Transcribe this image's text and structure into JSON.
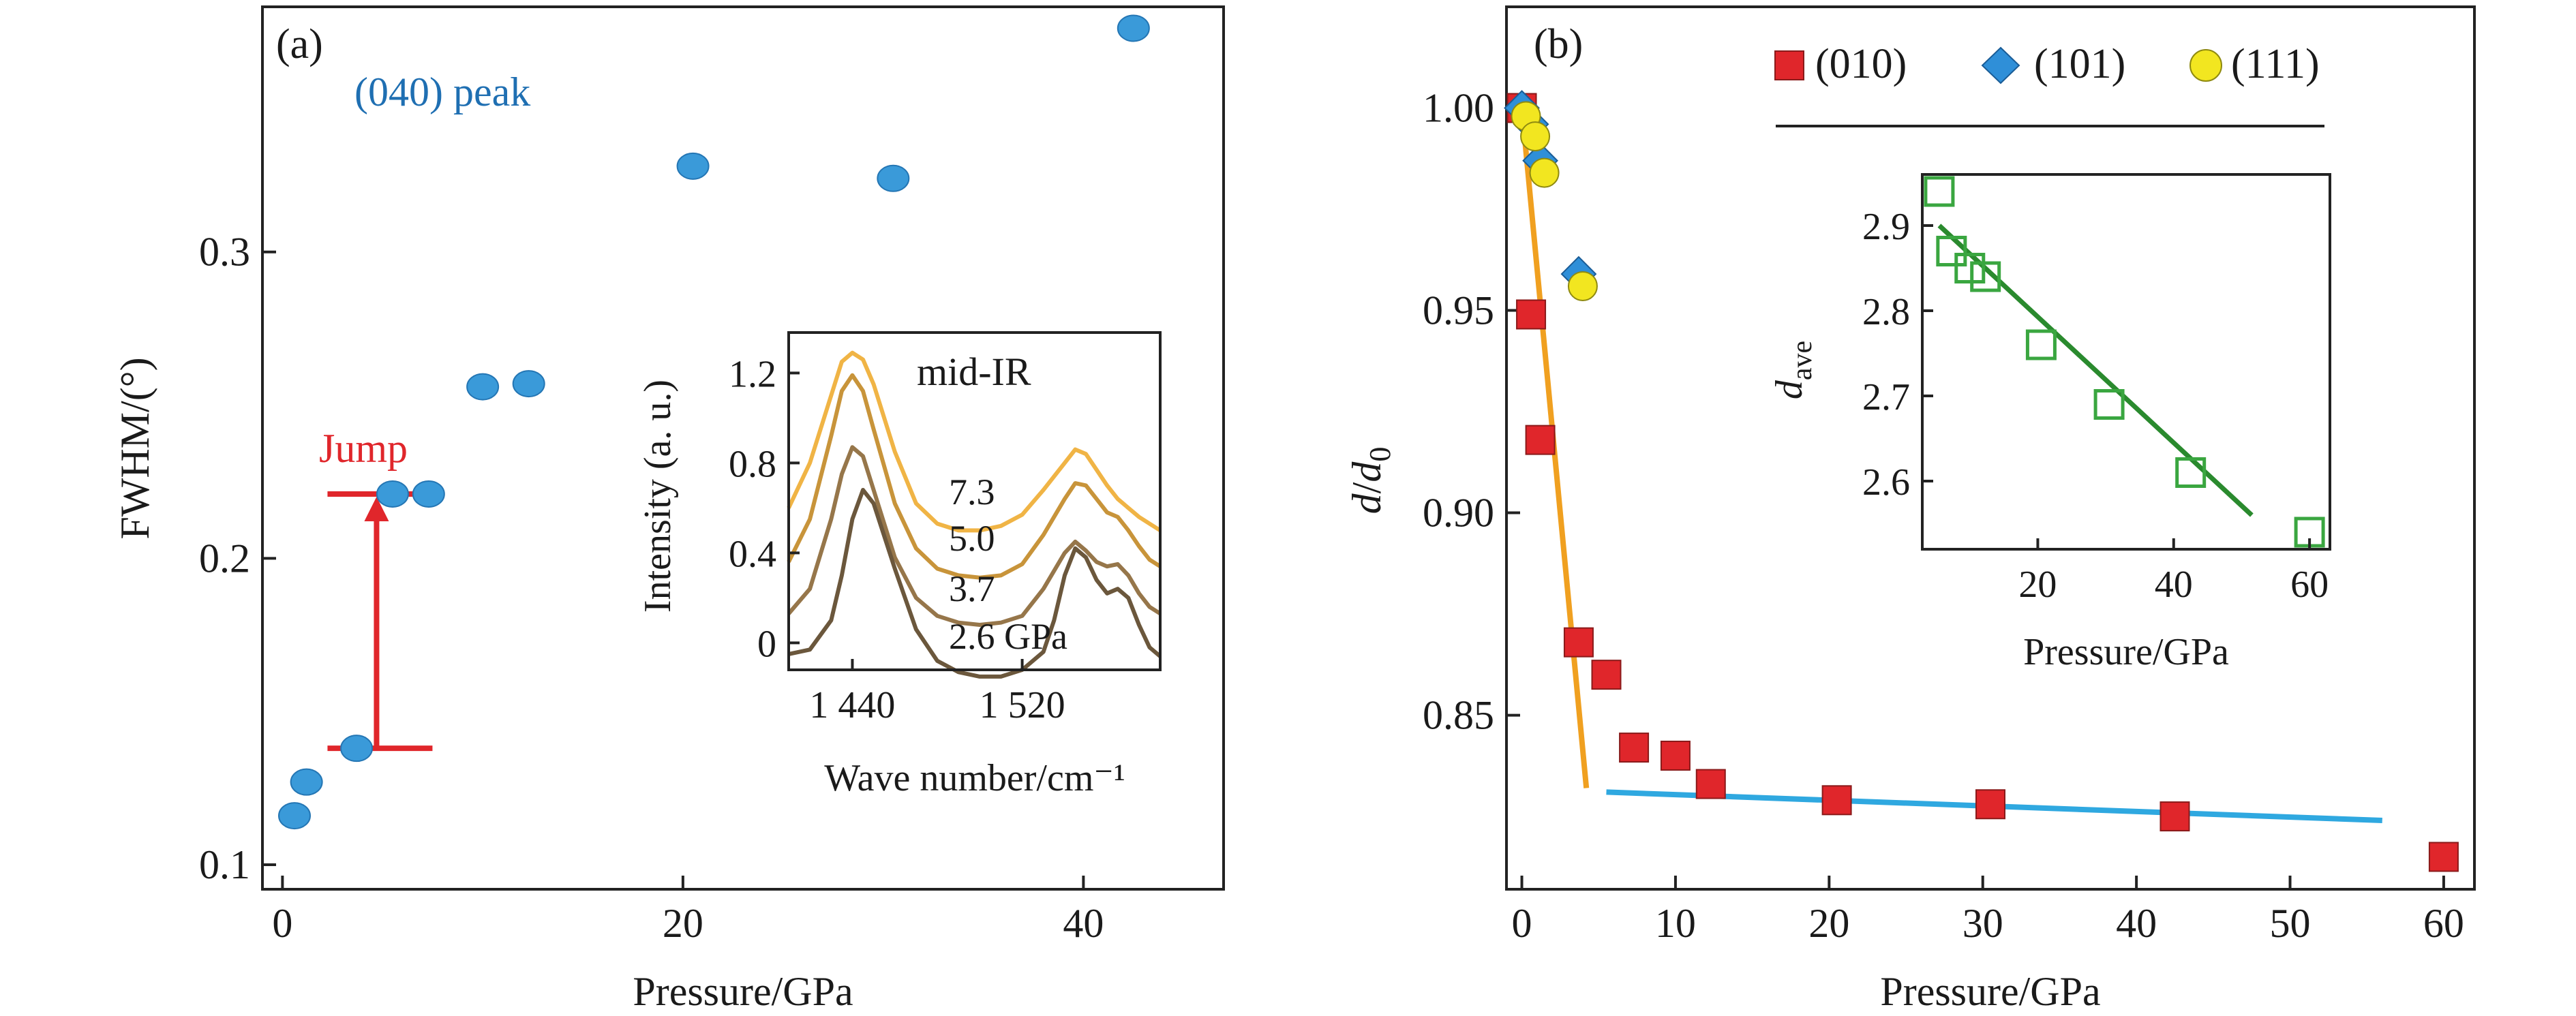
{
  "chart_data": [
    {
      "panel_label": "(a)",
      "type": "scatter",
      "annotation": "(040) peak",
      "annotation_color": "#1f6fb2",
      "xlabel": "Pressure/GPa",
      "ylabel": "FWHM/(°)",
      "xlim": [
        -1,
        47
      ],
      "ylim": [
        0.092,
        0.38
      ],
      "xticks": [
        0,
        20,
        40
      ],
      "yticks": [
        0.1,
        0.2,
        0.3
      ],
      "marker_color": "#3a9ad9",
      "points": [
        {
          "x": 0.6,
          "y": 0.116
        },
        {
          "x": 1.2,
          "y": 0.127
        },
        {
          "x": 3.7,
          "y": 0.138
        },
        {
          "x": 5.5,
          "y": 0.221
        },
        {
          "x": 7.3,
          "y": 0.221
        },
        {
          "x": 10.0,
          "y": 0.256
        },
        {
          "x": 12.3,
          "y": 0.257
        },
        {
          "x": 20.5,
          "y": 0.328
        },
        {
          "x": 30.5,
          "y": 0.324
        },
        {
          "x": 42.5,
          "y": 0.373
        }
      ],
      "jump": {
        "label": "Jump",
        "color": "#e0262b",
        "y_low": 0.138,
        "y_high": 0.221,
        "x": 4.7
      },
      "inset": {
        "type": "line",
        "annotation": "mid-IR",
        "xlabel": "Wave number/cm⁻¹",
        "ylabel": "Intensity (a. u.)",
        "xlim": [
          1410,
          1585
        ],
        "ylim": [
          -0.12,
          1.38
        ],
        "xticks": [
          1440,
          1520
        ],
        "xtick_labels": [
          "1 440",
          "1 520"
        ],
        "yticks": [
          0,
          0.4,
          0.8,
          1.2
        ],
        "ytick_labels": [
          "0",
          "0.4",
          "0.8",
          "1.2"
        ],
        "series": [
          {
            "name": "7.3",
            "color": "#f0b445",
            "x": [
              1410,
              1420,
              1430,
              1435,
              1440,
              1445,
              1450,
              1460,
              1470,
              1480,
              1490,
              1500,
              1510,
              1520,
              1530,
              1540,
              1545,
              1550,
              1555,
              1560,
              1565,
              1570,
              1575,
              1580,
              1585
            ],
            "y": [
              0.6,
              0.8,
              1.1,
              1.25,
              1.29,
              1.26,
              1.15,
              0.85,
              0.62,
              0.53,
              0.5,
              0.5,
              0.52,
              0.57,
              0.68,
              0.8,
              0.86,
              0.84,
              0.77,
              0.7,
              0.64,
              0.6,
              0.56,
              0.53,
              0.5
            ]
          },
          {
            "name": "5.0",
            "color": "#c8943a",
            "x": [
              1410,
              1420,
              1430,
              1435,
              1440,
              1445,
              1450,
              1460,
              1470,
              1480,
              1490,
              1500,
              1510,
              1520,
              1530,
              1540,
              1545,
              1550,
              1555,
              1560,
              1565,
              1570,
              1575,
              1580,
              1585
            ],
            "y": [
              0.36,
              0.55,
              0.92,
              1.12,
              1.19,
              1.12,
              0.95,
              0.62,
              0.42,
              0.33,
              0.3,
              0.29,
              0.3,
              0.35,
              0.48,
              0.64,
              0.71,
              0.7,
              0.64,
              0.58,
              0.56,
              0.5,
              0.43,
              0.37,
              0.34
            ]
          },
          {
            "name": "3.7",
            "color": "#96764a",
            "x": [
              1410,
              1420,
              1430,
              1435,
              1440,
              1445,
              1450,
              1460,
              1470,
              1480,
              1490,
              1500,
              1510,
              1520,
              1530,
              1540,
              1545,
              1550,
              1555,
              1560,
              1565,
              1570,
              1575,
              1580,
              1585
            ],
            "y": [
              0.13,
              0.24,
              0.55,
              0.75,
              0.87,
              0.83,
              0.68,
              0.38,
              0.2,
              0.12,
              0.09,
              0.08,
              0.09,
              0.12,
              0.24,
              0.4,
              0.45,
              0.41,
              0.36,
              0.34,
              0.35,
              0.3,
              0.22,
              0.16,
              0.13
            ]
          },
          {
            "name": "2.6 GPa",
            "color": "#6b573c",
            "x": [
              1410,
              1420,
              1430,
              1435,
              1440,
              1445,
              1450,
              1460,
              1470,
              1480,
              1490,
              1500,
              1510,
              1520,
              1530,
              1535,
              1540,
              1545,
              1550,
              1555,
              1560,
              1565,
              1570,
              1575,
              1580,
              1585
            ],
            "y": [
              -0.05,
              -0.03,
              0.1,
              0.3,
              0.55,
              0.68,
              0.62,
              0.33,
              0.06,
              -0.08,
              -0.13,
              -0.15,
              -0.15,
              -0.12,
              -0.04,
              0.1,
              0.3,
              0.42,
              0.38,
              0.28,
              0.22,
              0.24,
              0.2,
              0.08,
              -0.02,
              -0.06
            ]
          }
        ]
      }
    },
    {
      "panel_label": "(b)",
      "type": "scatter",
      "xlabel": "Pressure/GPa",
      "ylabel_main": "d",
      "ylabel_sep": "/",
      "ylabel_den": "d",
      "ylabel_sub": "0",
      "xlim": [
        -1,
        62
      ],
      "ylim": [
        0.807,
        1.025
      ],
      "xticks": [
        0,
        10,
        20,
        30,
        40,
        50,
        60
      ],
      "yticks": [
        0.85,
        0.9,
        0.95,
        1.0
      ],
      "ytick_labels": [
        "0.85",
        "0.90",
        "0.95",
        "1.00"
      ],
      "series": [
        {
          "name": "(010)",
          "marker": "square",
          "color": "#e0262b",
          "points": [
            {
              "x": 0,
              "y": 1.0
            },
            {
              "x": 0.6,
              "y": 0.949
            },
            {
              "x": 1.2,
              "y": 0.918
            },
            {
              "x": 3.7,
              "y": 0.868
            },
            {
              "x": 5.5,
              "y": 0.86
            },
            {
              "x": 7.3,
              "y": 0.842
            },
            {
              "x": 10.0,
              "y": 0.84
            },
            {
              "x": 12.3,
              "y": 0.833
            },
            {
              "x": 20.5,
              "y": 0.829
            },
            {
              "x": 30.5,
              "y": 0.828
            },
            {
              "x": 42.5,
              "y": 0.825
            },
            {
              "x": 60.0,
              "y": 0.815
            }
          ]
        },
        {
          "name": "(101)",
          "marker": "diamond",
          "color": "#2f8fd8",
          "points": [
            {
              "x": 0,
              "y": 1.0
            },
            {
              "x": 0.6,
              "y": 0.996
            },
            {
              "x": 1.2,
              "y": 0.987
            },
            {
              "x": 3.7,
              "y": 0.959
            }
          ]
        },
        {
          "name": "(111)",
          "marker": "circle",
          "color": "#f2e620",
          "points": [
            {
              "x": 0,
              "y": 0.999
            },
            {
              "x": 0.6,
              "y": 0.994
            },
            {
              "x": 1.2,
              "y": 0.985
            },
            {
              "x": 3.7,
              "y": 0.957
            }
          ]
        }
      ],
      "fit_lines": [
        {
          "color": "#f0a020",
          "x": [
            0,
            4.2
          ],
          "y": [
            1.0,
            0.832
          ]
        },
        {
          "color": "#2fa8e0",
          "x": [
            5.5,
            56
          ],
          "y": [
            0.831,
            0.824
          ]
        }
      ],
      "inset": {
        "type": "scatter",
        "xlabel": "Pressure/GPa",
        "ylabel_main": "d",
        "ylabel_sub": "ave",
        "xlim": [
          3,
          63
        ],
        "ylim": [
          2.52,
          2.96
        ],
        "xticks": [
          20,
          40,
          60
        ],
        "yticks": [
          2.6,
          2.7,
          2.8,
          2.9
        ],
        "ytick_labels": [
          "2.6",
          "2.7",
          "2.8",
          "2.9"
        ],
        "marker_color": "#3aa640",
        "points": [
          {
            "x": 5.5,
            "y": 2.94
          },
          {
            "x": 7.3,
            "y": 2.87
          },
          {
            "x": 10.0,
            "y": 2.85
          },
          {
            "x": 12.3,
            "y": 2.84
          },
          {
            "x": 20.5,
            "y": 2.76
          },
          {
            "x": 30.5,
            "y": 2.69
          },
          {
            "x": 42.5,
            "y": 2.61
          },
          {
            "x": 60.0,
            "y": 2.54
          }
        ],
        "fit_line": {
          "color": "#2a8a2e",
          "x": [
            5.5,
            51.5
          ],
          "y": [
            2.9,
            2.56
          ]
        }
      }
    }
  ]
}
